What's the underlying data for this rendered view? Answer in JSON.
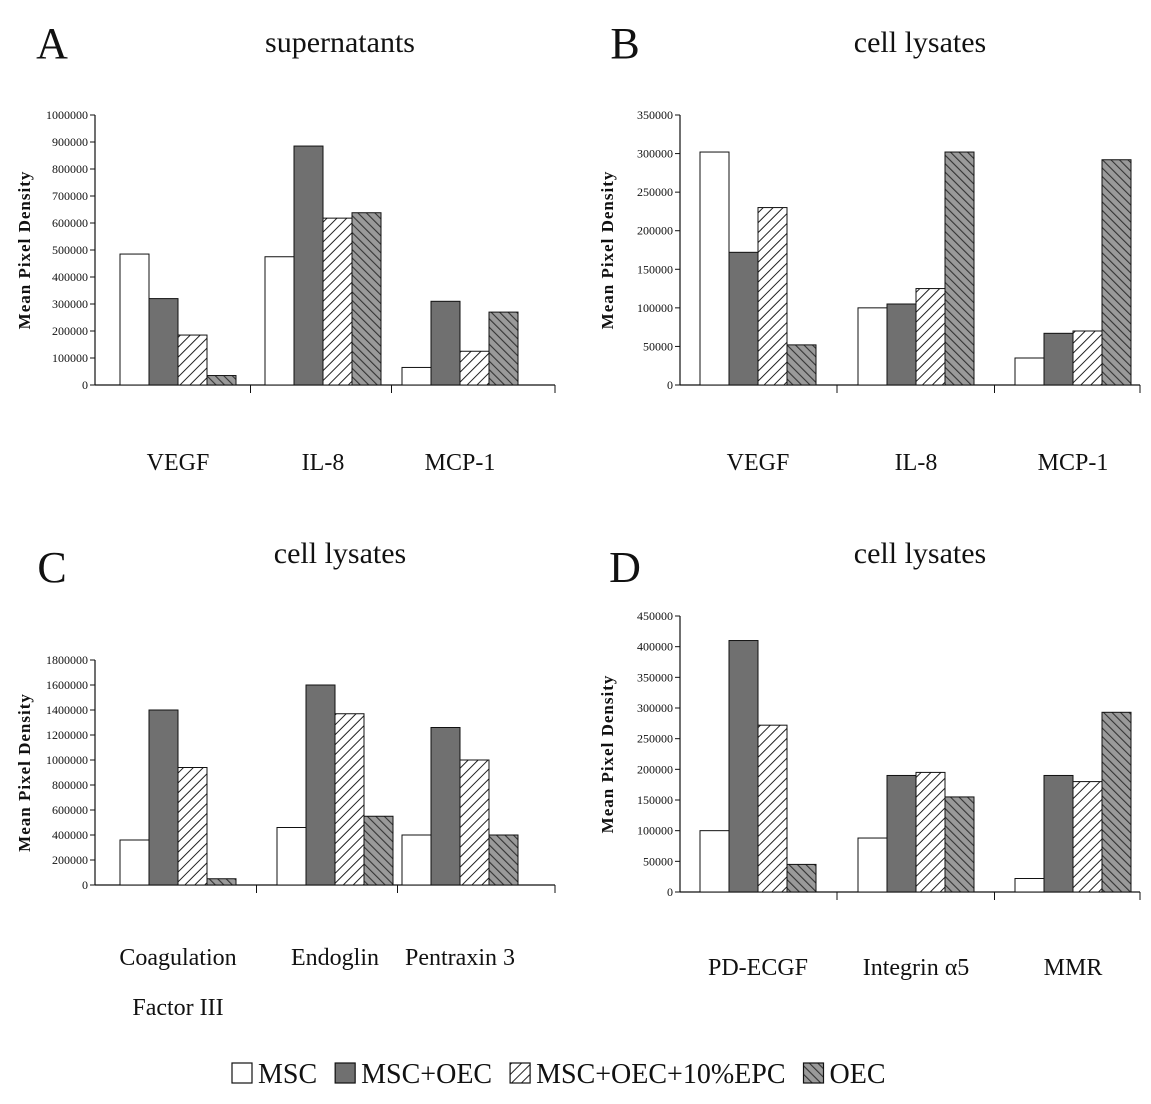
{
  "legend": [
    {
      "name": "MSC",
      "pattern": "white"
    },
    {
      "name": "MSC+OEC",
      "pattern": "gray"
    },
    {
      "name": "MSC+OEC+10%EPC",
      "pattern": "hatch-light"
    },
    {
      "name": "OEC",
      "pattern": "hatch-dark"
    }
  ],
  "colors": {
    "gray_fill": "#707070",
    "dark_hatch_bg": "#9a9a9a",
    "stroke": "#111111"
  },
  "chart_data": [
    {
      "type": "bar",
      "panel": "A",
      "title": "supernatants",
      "ylabel": "Mean Pixel Density",
      "ylim": [
        0,
        1000000
      ],
      "yticks": [
        0,
        100000,
        200000,
        300000,
        400000,
        500000,
        600000,
        700000,
        800000,
        900000,
        1000000
      ],
      "categories": [
        [
          "VEGF"
        ],
        [
          "IL-8"
        ],
        [
          "MCP-1"
        ]
      ],
      "series": [
        {
          "name": "MSC",
          "values": [
            485000,
            475000,
            65000
          ]
        },
        {
          "name": "MSC+OEC",
          "values": [
            320000,
            885000,
            310000
          ]
        },
        {
          "name": "MSC+OEC+10%EPC",
          "values": [
            185000,
            618000,
            125000
          ]
        },
        {
          "name": "OEC",
          "values": [
            35000,
            638000,
            270000
          ]
        }
      ]
    },
    {
      "type": "bar",
      "panel": "B",
      "title": "cell lysates",
      "ylabel": "Mean Pixel Density",
      "ylim": [
        0,
        350000
      ],
      "yticks": [
        0,
        50000,
        100000,
        150000,
        200000,
        250000,
        300000,
        350000
      ],
      "categories": [
        [
          "VEGF"
        ],
        [
          "IL-8"
        ],
        [
          "MCP-1"
        ]
      ],
      "series": [
        {
          "name": "MSC",
          "values": [
            302000,
            100000,
            35000
          ]
        },
        {
          "name": "MSC+OEC",
          "values": [
            172000,
            105000,
            67000
          ]
        },
        {
          "name": "MSC+OEC+10%EPC",
          "values": [
            230000,
            125000,
            70000
          ]
        },
        {
          "name": "OEC",
          "values": [
            52000,
            302000,
            292000
          ]
        }
      ]
    },
    {
      "type": "bar",
      "panel": "C",
      "title": "cell lysates",
      "ylabel": "Mean Pixel Density",
      "ylim": [
        0,
        1800000
      ],
      "yticks": [
        0,
        200000,
        400000,
        600000,
        800000,
        1000000,
        1200000,
        1400000,
        1600000,
        1800000
      ],
      "categories": [
        [
          "Coagulation",
          "Factor III"
        ],
        [
          "Endoglin"
        ],
        [
          "Pentraxin 3"
        ]
      ],
      "series": [
        {
          "name": "MSC",
          "values": [
            360000,
            460000,
            400000
          ]
        },
        {
          "name": "MSC+OEC",
          "values": [
            1400000,
            1600000,
            1260000
          ]
        },
        {
          "name": "MSC+OEC+10%EPC",
          "values": [
            940000,
            1370000,
            1000000
          ]
        },
        {
          "name": "OEC",
          "values": [
            50000,
            550000,
            400000
          ]
        }
      ]
    },
    {
      "type": "bar",
      "panel": "D",
      "title": "cell lysates",
      "ylabel": "Mean Pixel Density",
      "ylim": [
        0,
        450000
      ],
      "yticks": [
        0,
        50000,
        100000,
        150000,
        200000,
        250000,
        300000,
        350000,
        400000,
        450000
      ],
      "categories": [
        [
          "PD-ECGF"
        ],
        [
          "Integrin α5"
        ],
        [
          "MMR"
        ]
      ],
      "series": [
        {
          "name": "MSC",
          "values": [
            100000,
            88000,
            22000
          ]
        },
        {
          "name": "MSC+OEC",
          "values": [
            410000,
            190000,
            190000
          ]
        },
        {
          "name": "MSC+OEC+10%EPC",
          "values": [
            272000,
            195000,
            180000
          ]
        },
        {
          "name": "OEC",
          "values": [
            45000,
            155000,
            293000
          ]
        }
      ]
    }
  ]
}
